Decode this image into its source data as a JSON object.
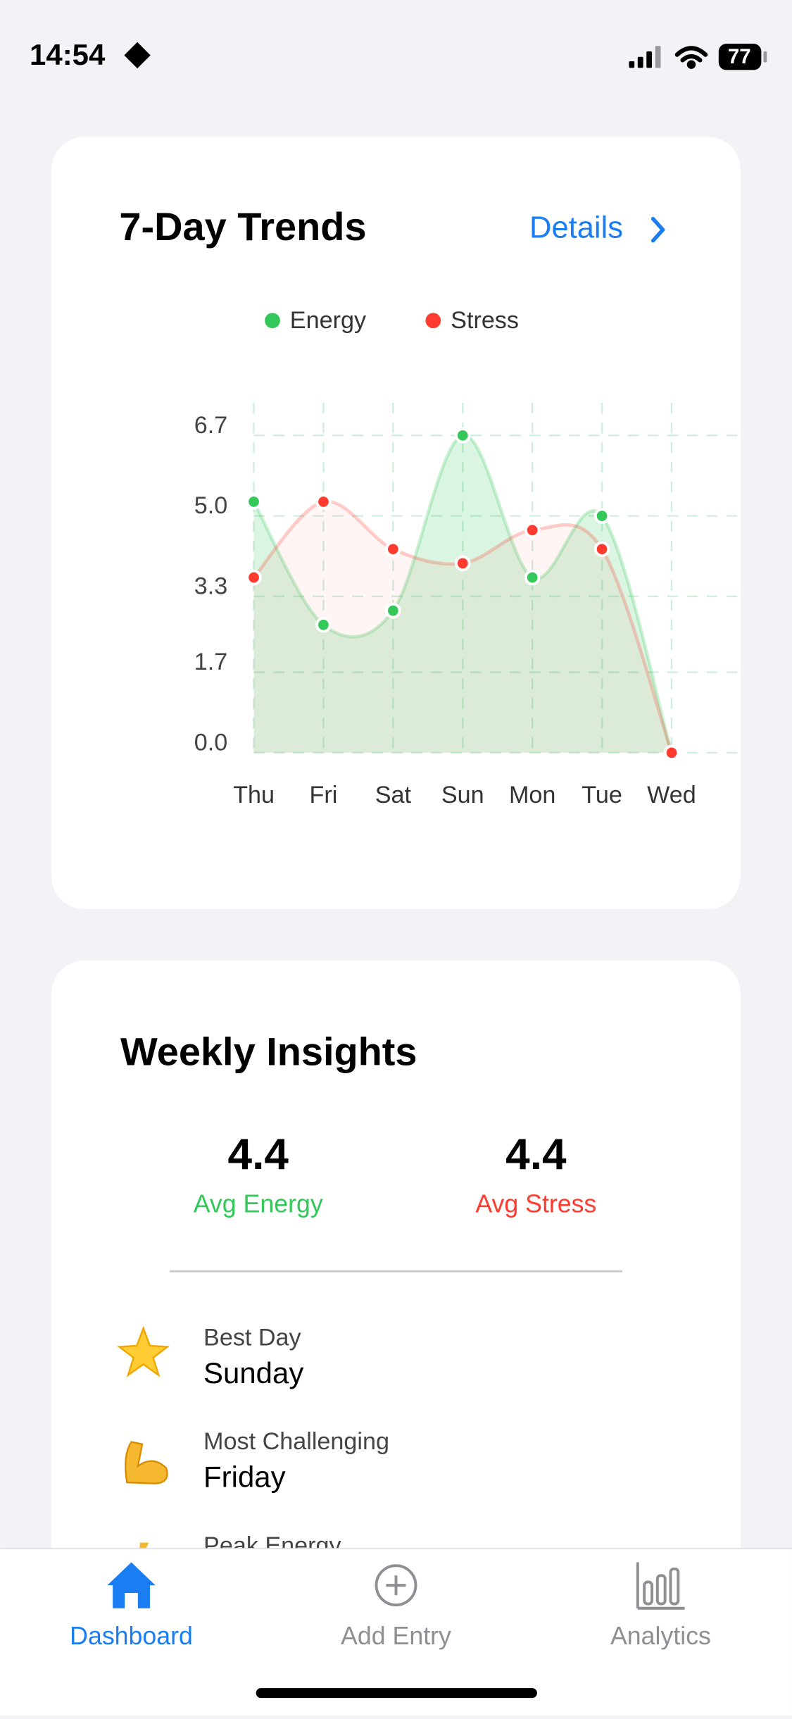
{
  "status_bar": {
    "time": "14:54",
    "battery": "77"
  },
  "trends": {
    "title": "7-Day Trends",
    "details": "Details"
  },
  "chart_data": {
    "type": "line",
    "categories": [
      "Thu",
      "Fri",
      "Sat",
      "Sun",
      "Mon",
      "Tue",
      "Wed"
    ],
    "series": [
      {
        "name": "Energy",
        "color": "#34c759",
        "values": [
          5.3,
          2.7,
          3.0,
          6.7,
          3.7,
          5.0,
          0
        ]
      },
      {
        "name": "Stress",
        "color": "#ff3b30",
        "values": [
          3.7,
          5.3,
          4.3,
          4.0,
          4.7,
          4.3,
          0
        ]
      }
    ],
    "ylim": [
      0,
      6.7
    ],
    "yticks": [
      {
        "value": 0,
        "label": "0.0"
      },
      {
        "value": 1.7,
        "label": "1.7"
      },
      {
        "value": 3.3,
        "label": "3.3"
      },
      {
        "value": 5.0,
        "label": "5.0"
      },
      {
        "value": 6.7,
        "label": "6.7"
      }
    ],
    "grid": true,
    "legend": "top"
  },
  "insights": {
    "title": "Weekly Insights",
    "stats": [
      {
        "value": 4.4,
        "label": "Avg Energy"
      },
      {
        "value": 4.4,
        "label": "Avg Stress"
      }
    ],
    "items": [
      {
        "label": "Best Day",
        "value": "Sunday"
      },
      {
        "label": "Most Challenging",
        "value": "Friday"
      },
      {
        "label": "Peak Energy"
      }
    ]
  },
  "tab_bar": {
    "items": [
      "Dashboard",
      "Add Entry",
      "Analytics"
    ]
  }
}
